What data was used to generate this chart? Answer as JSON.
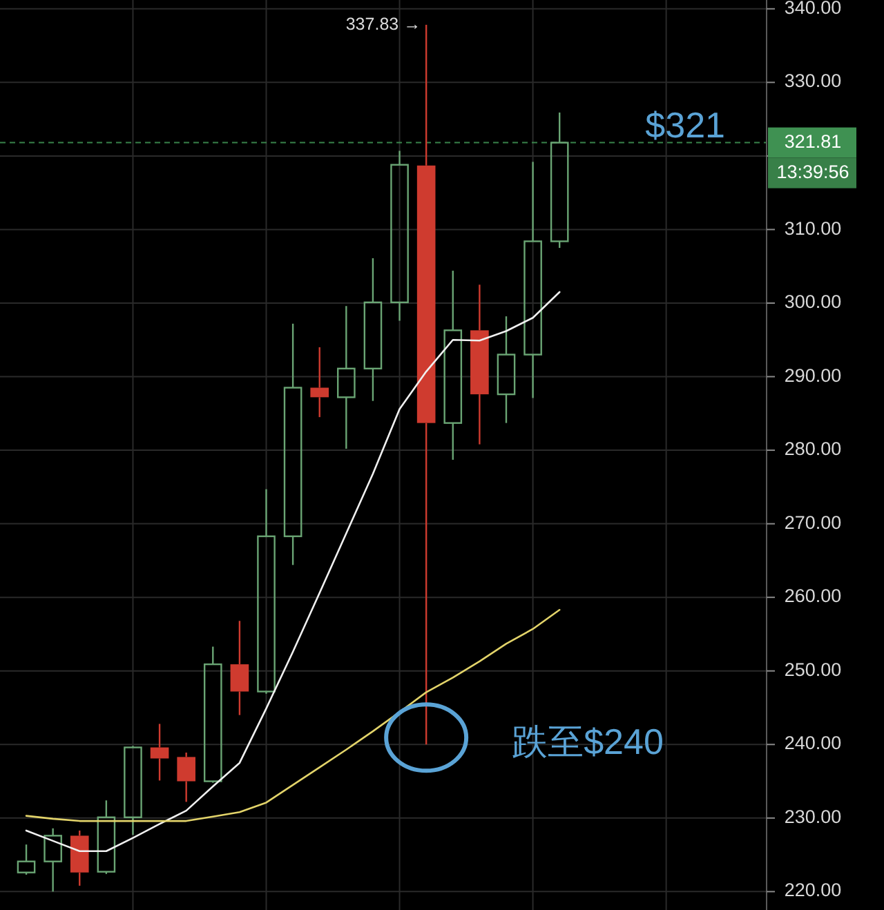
{
  "chart_data": {
    "type": "candlestick",
    "categories": [
      null,
      null,
      null,
      null,
      null,
      null,
      null,
      null,
      null,
      null,
      null,
      null,
      null,
      null,
      null,
      null,
      null,
      null,
      null,
      null,
      null
    ],
    "ohlc": [
      [
        222.6,
        226.4,
        222.3,
        224.1
      ],
      [
        224.1,
        228.6,
        220.0,
        227.6
      ],
      [
        227.6,
        228.3,
        220.8,
        222.6
      ],
      [
        222.7,
        232.4,
        222.4,
        230.1
      ],
      [
        230.1,
        239.8,
        227.7,
        239.6
      ],
      [
        239.6,
        242.8,
        235.1,
        238.1
      ],
      [
        238.3,
        238.9,
        232.2,
        235.0
      ],
      [
        235.0,
        253.3,
        234.8,
        250.9
      ],
      [
        250.9,
        256.8,
        244.0,
        247.2
      ],
      [
        247.2,
        274.7,
        246.9,
        268.3
      ],
      [
        268.3,
        297.2,
        264.4,
        288.5
      ],
      [
        288.5,
        294.0,
        284.5,
        287.2
      ],
      [
        287.2,
        299.6,
        280.2,
        291.1
      ],
      [
        291.1,
        306.1,
        286.7,
        300.1
      ],
      [
        300.1,
        320.7,
        297.6,
        318.8
      ],
      [
        318.7,
        337.83,
        240,
        283.7
      ],
      [
        283.7,
        304.4,
        278.7,
        296.3
      ],
      [
        296.3,
        302.5,
        280.8,
        287.6
      ],
      [
        287.6,
        298.2,
        283.7,
        293.0
      ],
      [
        293.0,
        319.2,
        287.1,
        308.4
      ],
      [
        308.4,
        325.9,
        307.5,
        321.81
      ]
    ],
    "colors": [
      "#6aa574",
      "#6aa574",
      "#cf3b2f",
      "#6aa574",
      "#6aa574",
      "#cf3b2f",
      "#cf3b2f",
      "#6aa574",
      "#cf3b2f",
      "#6aa574",
      "#6aa574",
      "#cf3b2f",
      "#6aa574",
      "#6aa574",
      "#6aa574",
      "#cf3b2f",
      "#6aa574",
      "#cf3b2f",
      "#6aa574",
      "#6aa574",
      "#6aa574"
    ],
    "series": [
      {
        "type": "line",
        "color": "#f0f0f0",
        "values": [
          228.3,
          226.9,
          225.5,
          225.5,
          227.3,
          229.2,
          231.0,
          234.3,
          237.5,
          244.9,
          252.6,
          260.6,
          268.7,
          276.8,
          285.6,
          290.7,
          295.0,
          294.9,
          296.2,
          298.0,
          301.5
        ]
      },
      {
        "type": "line",
        "color": "#e3d46a",
        "values": [
          230.3,
          229.9,
          229.6,
          229.6,
          229.6,
          229.6,
          229.6,
          230.2,
          230.8,
          232.1,
          234.5,
          236.9,
          239.3,
          241.8,
          244.4,
          247.1,
          249.1,
          251.3,
          253.7,
          255.7,
          258.3
        ]
      }
    ],
    "ylim": [
      217.5,
      341.2
    ],
    "yticks": [
      {
        "value": 220,
        "label": "220.00"
      },
      {
        "value": 230,
        "label": "230.00"
      },
      {
        "value": 240,
        "label": "240.00"
      },
      {
        "value": 250,
        "label": "250.00"
      },
      {
        "value": 260,
        "label": "260.00"
      },
      {
        "value": 270,
        "label": "270.00"
      },
      {
        "value": 280,
        "label": "280.00"
      },
      {
        "value": 290,
        "label": "290.00"
      },
      {
        "value": 300,
        "label": "300.00"
      },
      {
        "value": 310,
        "label": "310.00"
      },
      {
        "value": 320,
        "label": null
      },
      {
        "value": 330,
        "label": "330.00"
      },
      {
        "value": 340,
        "label": "340.00"
      }
    ],
    "tick_labels": "y",
    "grid": true,
    "ref_lines": [
      {
        "axis": "y",
        "value": 321.81,
        "label": "321.81",
        "color": "#3f9152",
        "line_style": "dashed"
      }
    ],
    "annotations": [
      "337.83 →",
      {
        "text": "$321",
        "y": 321.81
      },
      "跌至$240",
      "13:39:56"
    ]
  }
}
